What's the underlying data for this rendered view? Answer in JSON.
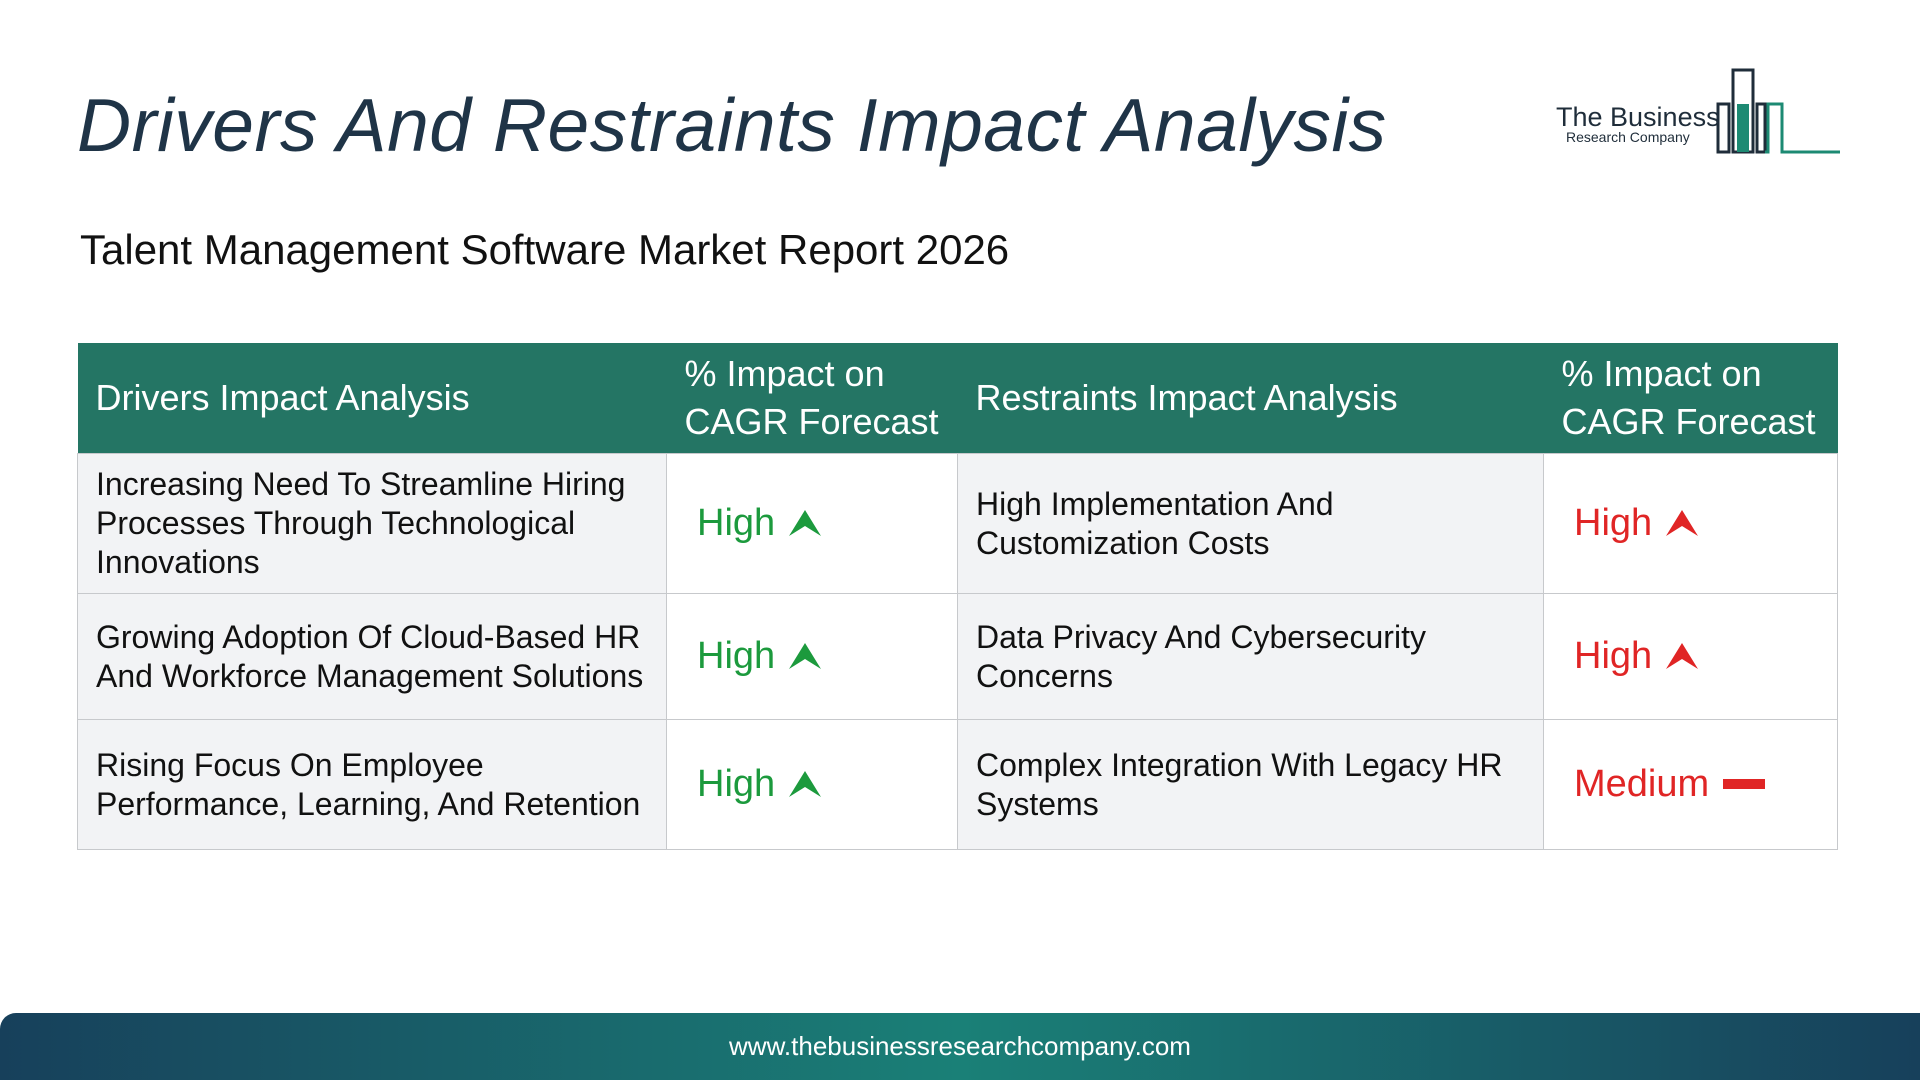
{
  "title": "Drivers And Restraints Impact Analysis",
  "subtitle": "Talent Management Software Market Report 2026",
  "logo": {
    "name": "The Business",
    "sub": "Research Company"
  },
  "table": {
    "headers": {
      "drivers": "Drivers Impact Analysis",
      "drivers_impact_line1": "% Impact on",
      "drivers_impact_line2": "CAGR Forecast",
      "restraints": "Restraints Impact Analysis",
      "restraints_impact_line1": "% Impact on",
      "restraints_impact_line2": "CAGR Forecast"
    },
    "rows": [
      {
        "driver": "Increasing Need To Streamline Hiring Processes Through Technological Innovations",
        "driver_impact": "High",
        "driver_icon": "up-arrow-icon",
        "restraint": "High Implementation And Customization Costs",
        "restraint_impact": "High",
        "restraint_icon": "up-arrow-icon"
      },
      {
        "driver": "Growing Adoption Of Cloud-Based HR And Workforce Management Solutions",
        "driver_impact": "High",
        "driver_icon": "up-arrow-icon",
        "restraint": "Data Privacy And Cybersecurity Concerns",
        "restraint_impact": "High",
        "restraint_icon": "up-arrow-icon"
      },
      {
        "driver": "Rising Focus On Employee Performance, Learning, And Retention",
        "driver_impact": "High",
        "driver_icon": "up-arrow-icon",
        "restraint": "Complex Integration With Legacy HR Systems",
        "restraint_impact": "Medium",
        "restraint_icon": "dash-icon"
      }
    ]
  },
  "footer": {
    "url": "www.thebusinessresearchcompany.com"
  },
  "colors": {
    "header_bg": "#247564",
    "title": "#1f3447",
    "driver_impact": "#1c9a3d",
    "restraint_impact": "#e02525",
    "cell_bg": "#f2f3f5",
    "footer_dark": "#17405b",
    "footer_teal": "#1a8077"
  }
}
